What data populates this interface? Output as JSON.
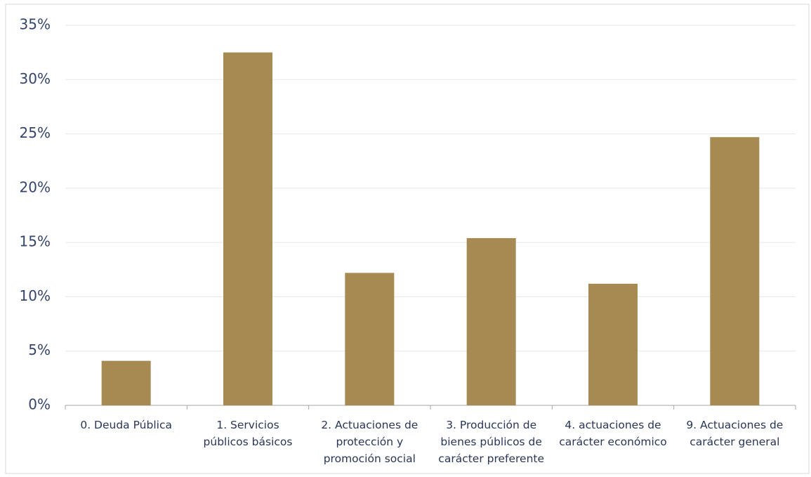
{
  "chart_data": {
    "type": "bar",
    "categories": [
      [
        "0. Deuda Pública"
      ],
      [
        "1. Servicios",
        "públicos básicos"
      ],
      [
        "2. Actuaciones de",
        "protección y",
        "promoción social"
      ],
      [
        "3. Producción de",
        "bienes públicos de",
        "carácter preferente"
      ],
      [
        "4. actuaciones de",
        "carácter económico"
      ],
      [
        "9. Actuaciones de",
        "carácter general"
      ]
    ],
    "values": [
      4.1,
      32.5,
      12.2,
      15.4,
      11.2,
      24.7
    ],
    "color": "#a68a52",
    "ylim": [
      0,
      35
    ],
    "yticks": [
      {
        "value": 0,
        "label": "0%"
      },
      {
        "value": 5,
        "label": "5%"
      },
      {
        "value": 10,
        "label": "10%"
      },
      {
        "value": 15,
        "label": "15%"
      },
      {
        "value": 20,
        "label": "20%"
      },
      {
        "value": 25,
        "label": "25%"
      },
      {
        "value": 30,
        "label": "30%"
      },
      {
        "value": 35,
        "label": "35%"
      }
    ],
    "grid": true
  }
}
